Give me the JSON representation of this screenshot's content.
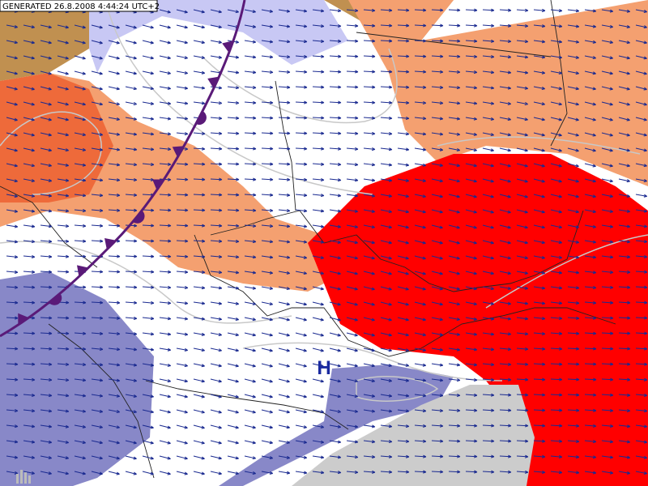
{
  "header": {
    "generated": "GENERATED 26.8.2008 4:44:24 UTC+2"
  },
  "labels": {
    "pressure_center": "H"
  }
}
